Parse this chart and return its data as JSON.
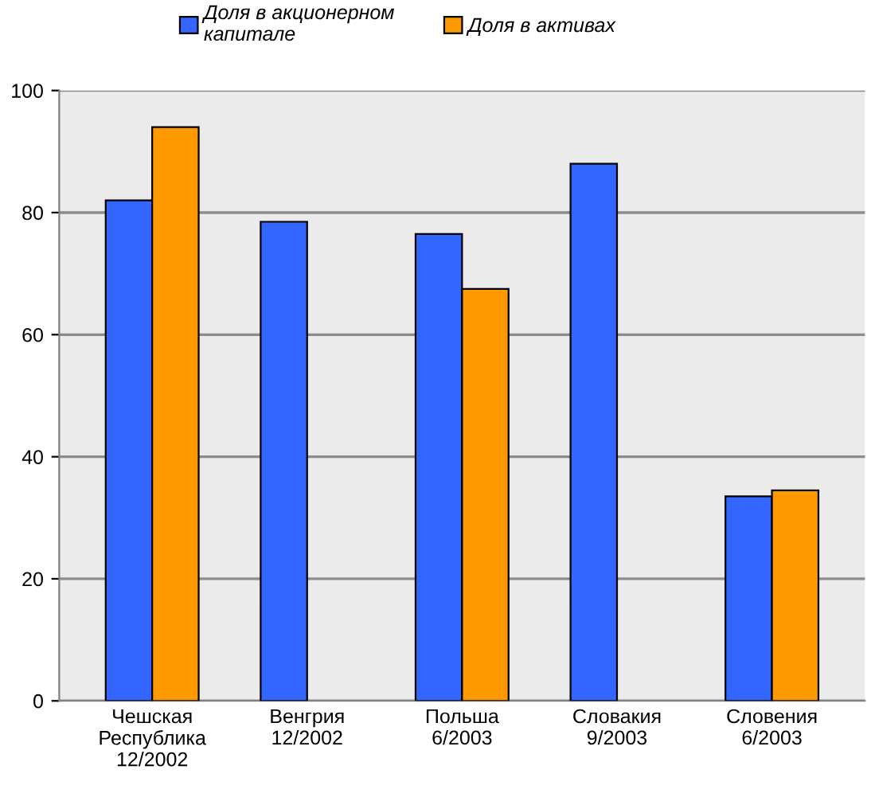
{
  "chart_data": {
    "type": "bar",
    "categories": [
      "Чешская\nРеспублика\n12/2002",
      "Венгрия\n12/2002",
      "Польша\n6/2003",
      "Словакия\n9/2003",
      "Словения\n6/2003"
    ],
    "series": [
      {
        "name": "Доля в акционерном\nкапитале",
        "color": "#3366ff",
        "values": [
          82,
          78.5,
          76.5,
          88,
          33.5
        ]
      },
      {
        "name": "Доля в активах",
        "color": "#ff9900",
        "values": [
          94,
          null,
          67.5,
          null,
          34.5
        ]
      }
    ],
    "ylim": [
      0,
      100
    ],
    "yticks": [
      0,
      20,
      40,
      60,
      80,
      100
    ],
    "grid": "y",
    "legend": "top"
  }
}
